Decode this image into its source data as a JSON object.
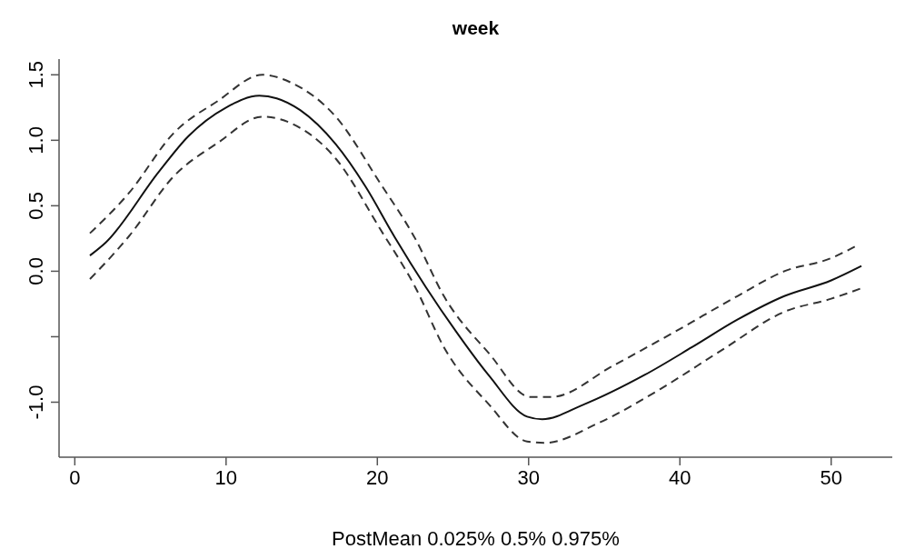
{
  "chart_data": {
    "type": "line",
    "title": "week",
    "xlabel": "PostMean  0.025% 0.5% 0.975%",
    "xlim": [
      -1.04,
      54.04
    ],
    "ylim": [
      -1.42,
      1.62
    ],
    "xticks": [
      0,
      10,
      20,
      30,
      40,
      50
    ],
    "yticks": [
      {
        "value": -1,
        "label": "-1.0"
      },
      {
        "value": -0.5,
        "label": null
      },
      {
        "value": 0,
        "label": "0.0"
      },
      {
        "value": 0.5,
        "label": "0.5"
      },
      {
        "value": 1,
        "label": "1.0"
      },
      {
        "value": 1.5,
        "label": "1.5"
      }
    ],
    "grid": false,
    "marker": "none",
    "series": [
      {
        "color": "#111111",
        "line_style": "solid",
        "x": [
          1,
          2.05,
          5.56,
          7.5,
          10,
          12.2,
          13.35,
          14.9,
          17.25,
          19.2,
          21.15,
          23.2,
          25.2,
          27.4,
          29.9,
          30.9,
          33.6,
          37.7,
          40.8,
          43.8,
          46.9,
          50,
          52
        ],
        "values": [
          0.12,
          0.22,
          0.76,
          1.03,
          1.25,
          1.34,
          1.32,
          1.23,
          0.97,
          0.65,
          0.26,
          -0.12,
          -0.46,
          -0.8,
          -1.11,
          -1.13,
          -1.02,
          -0.79,
          -0.58,
          -0.37,
          -0.19,
          -0.07,
          0.04
        ]
      },
      {
        "color": "#333333",
        "line_style": "dashed",
        "x": [
          1,
          3.6,
          6.5,
          9.45,
          12.4,
          14.3,
          17.25,
          20.2,
          22.5,
          24.4,
          27.4,
          30.1,
          31.5,
          35.6,
          39.7,
          43.8,
          46.9,
          50,
          51.6
        ],
        "values": [
          0.29,
          0.6,
          1.05,
          1.3,
          1.5,
          1.44,
          1.18,
          0.67,
          0.25,
          -0.19,
          -0.63,
          -0.96,
          -0.96,
          -0.72,
          -0.46,
          -0.19,
          0,
          0.1,
          0.19
        ]
      },
      {
        "color": "#333333",
        "line_style": "dashed",
        "x": [
          1,
          3.6,
          6.5,
          9.45,
          12.4,
          14.3,
          17.25,
          20.2,
          22.5,
          24.4,
          27.4,
          29.9,
          31.1,
          34.6,
          38.7,
          42.8,
          46.9,
          50,
          52
        ],
        "values": [
          -0.06,
          0.27,
          0.72,
          0.98,
          1.18,
          1.13,
          0.86,
          0.32,
          -0.12,
          -0.58,
          -1.02,
          -1.3,
          -1.31,
          -1.16,
          -0.9,
          -0.6,
          -0.31,
          -0.21,
          -0.13
        ]
      }
    ]
  }
}
